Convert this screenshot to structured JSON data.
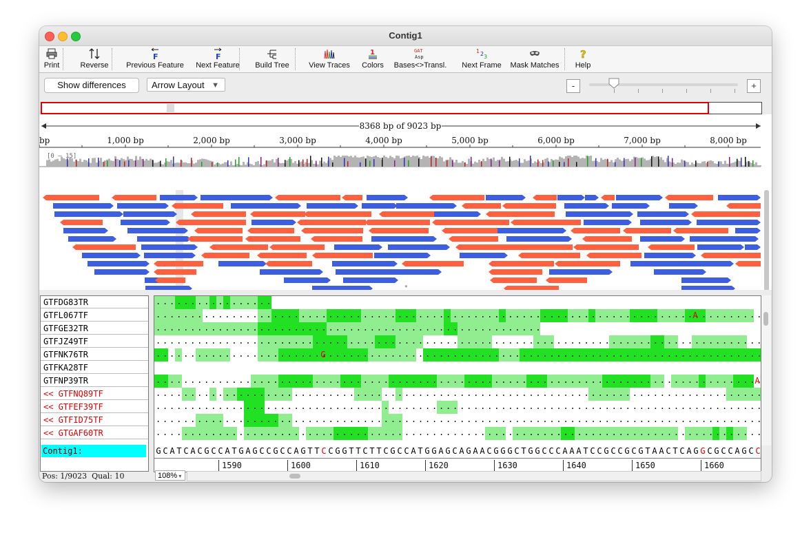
{
  "window": {
    "title": "Contig1"
  },
  "toolbar": [
    {
      "label": "Print",
      "icon": "printer-icon",
      "width": 34
    },
    {
      "label": "Reverse",
      "icon": "reverse-icon",
      "width": 60
    },
    {
      "label": "Previous Feature",
      "icon": "previous-feature-icon",
      "width": 106
    },
    {
      "label": "Next Feature",
      "icon": "next-feature-icon",
      "width": 82
    },
    {
      "label": "Build Tree",
      "icon": "build-tree-icon",
      "width": 68
    },
    {
      "label": "View Traces",
      "icon": "view-traces-icon",
      "width": 78
    },
    {
      "label": "Colors",
      "icon": "colors-icon",
      "width": 52
    },
    {
      "label": "Bases<>Transl.",
      "icon": "bases-translation-icon",
      "width": 94
    },
    {
      "label": "Next Frame",
      "icon": "next-frame-icon",
      "width": 76
    },
    {
      "label": "Mask Matches",
      "icon": "mask-matches-icon",
      "width": 86
    },
    {
      "label": "Help",
      "icon": "help-icon",
      "width": 34
    }
  ],
  "controls": {
    "show_differences": "Show differences",
    "layout_dropdown": "Arrow Layout",
    "zoom_out": "-",
    "zoom_in": "+"
  },
  "ruler": {
    "span_label": "8368 bp of 9023 bp",
    "ticks": [
      "bp",
      "1,000 bp",
      "2,000 bp",
      "3,000 bp",
      "4,000 bp",
      "5,000 bp",
      "6,000 bp",
      "7,000 bp",
      "8,000 bp"
    ],
    "coverage_label": "[0 – 15]"
  },
  "reads": [
    {
      "name": "GTFDG83TR",
      "reverse": false
    },
    {
      "name": "GTFL067TF",
      "reverse": false
    },
    {
      "name": "GTFGE32TR",
      "reverse": false
    },
    {
      "name": "GTFJZ49TF",
      "reverse": false
    },
    {
      "name": "GTFNK76TR",
      "reverse": false
    },
    {
      "name": "GTFKA28TF",
      "reverse": false
    },
    {
      "name": "GTFNP39TR",
      "reverse": false
    },
    {
      "name": "<< GTFNQ89TF",
      "reverse": true
    },
    {
      "name": "<< GTFEF39TF",
      "reverse": true
    },
    {
      "name": "<< GTFID75TF",
      "reverse": true
    },
    {
      "name": "<< GTGAF60TR",
      "reverse": true
    }
  ],
  "contig": {
    "label": "Contig1:",
    "sequence": "GCATCACGCCATGAGCCGCCAGTTCCGGTTCTTCGCCATGGAGCAGAACGGGCTGGCCCAAATCCGCCGCGTAACTCAGGCGCCAGCCG"
  },
  "position_ruler": [
    "1590",
    "1600",
    "1610",
    "1620",
    "1630",
    "1640",
    "1650",
    "1660"
  ],
  "status": {
    "position": "Pos: 1/9023",
    "quality": "Qual: 10",
    "zoom": "108%"
  },
  "colors": {
    "forward": "#3d5ee0",
    "reverse": "#ff6040",
    "match_bright": "#22e022",
    "match_light": "#90ee90",
    "mismatch": "#e00000",
    "contig_bg": "#00ffff"
  }
}
